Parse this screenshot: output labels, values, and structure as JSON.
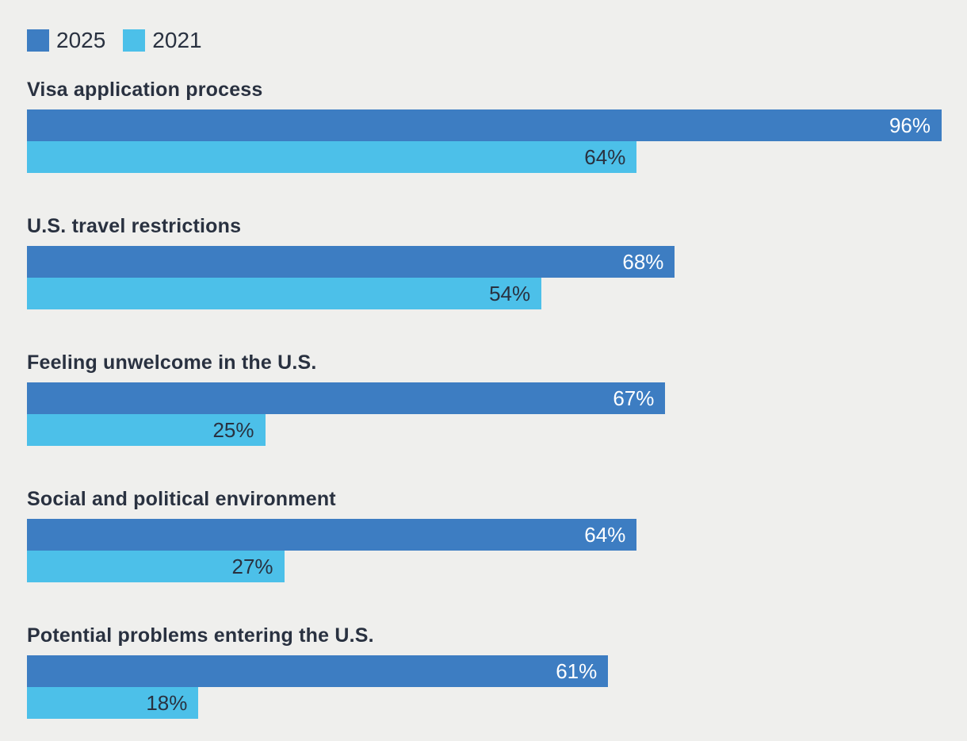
{
  "colors": {
    "background": "#efefed",
    "text": "#293140",
    "series_2025": "#3d7dc2",
    "series_2021": "#4cc0e9"
  },
  "chart_data": {
    "type": "bar",
    "orientation": "horizontal",
    "title": "",
    "legend_position": "top-left",
    "grid": false,
    "scale_max": 96,
    "value_suffix": "%",
    "categories": [
      "Visa application process",
      "U.S. travel restrictions",
      "Feeling unwelcome in the U.S.",
      "Social and political environment",
      "Potential problems entering the U.S."
    ],
    "series": [
      {
        "name": "2025",
        "color": "#3d7dc2",
        "label_color": "#ffffff",
        "values": [
          96,
          68,
          67,
          64,
          61
        ]
      },
      {
        "name": "2021",
        "color": "#4cc0e9",
        "label_color": "#293140",
        "values": [
          64,
          54,
          25,
          27,
          18
        ]
      }
    ]
  }
}
